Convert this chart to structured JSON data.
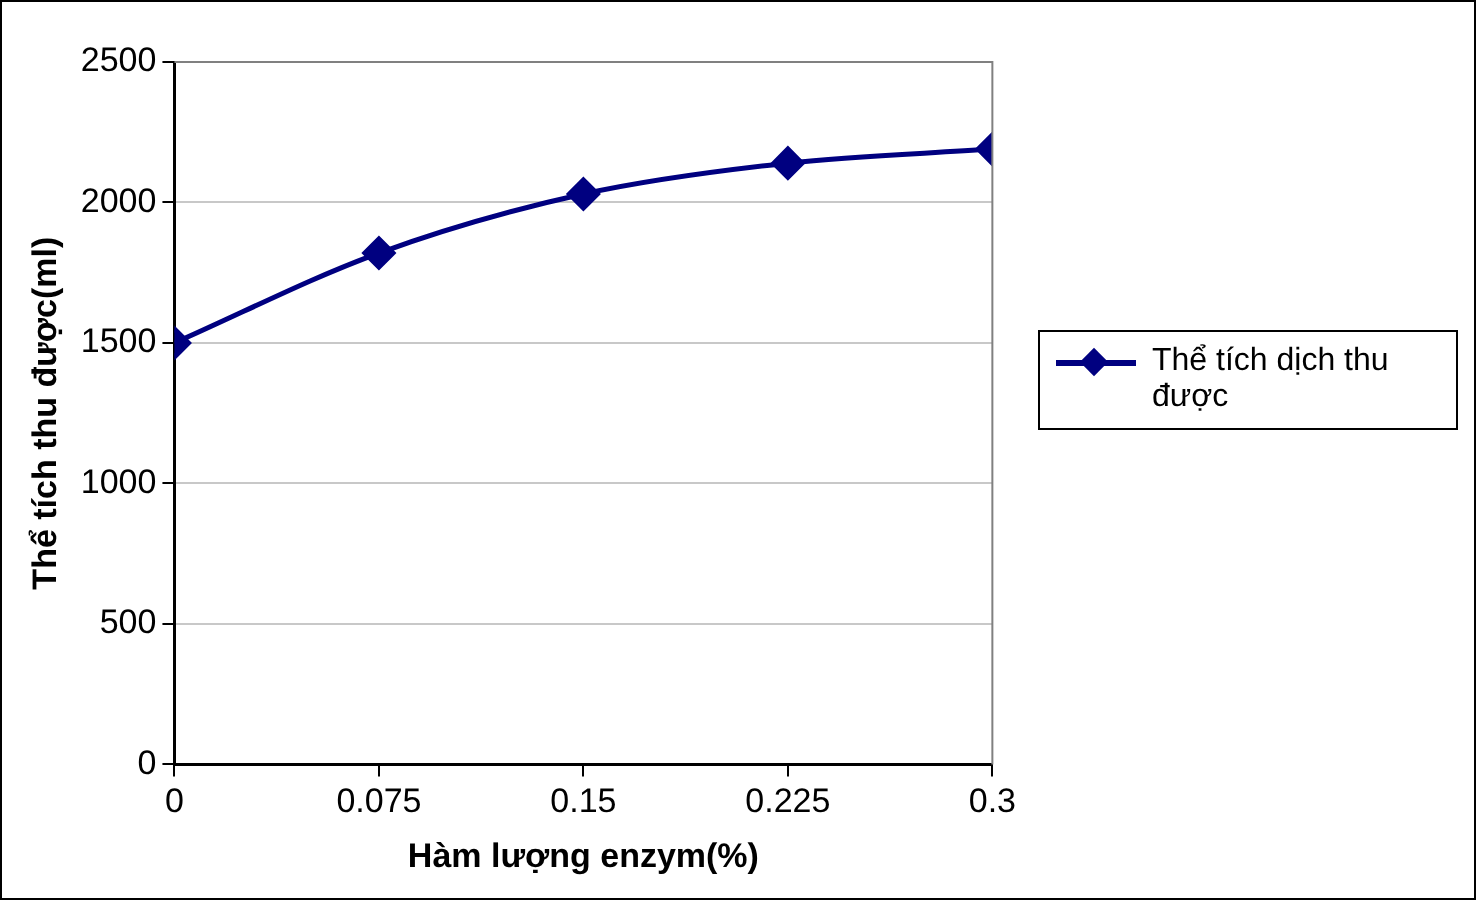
{
  "chart_data": {
    "type": "line",
    "xlabel": "Hàm lượng enzym(%)",
    "ylabel": "Thể tích thu được(ml)",
    "x": [
      0,
      0.075,
      0.15,
      0.225,
      0.3
    ],
    "series": [
      {
        "name": "Thể tích dịch thu được",
        "color": "#000080",
        "values": [
          1500,
          1820,
          2030,
          2140,
          2190
        ]
      }
    ],
    "xlim": [
      0,
      0.3
    ],
    "xticks": [
      0,
      0.075,
      0.15,
      0.225,
      0.3
    ],
    "ylim": [
      0,
      2500
    ],
    "yticks": [
      0,
      500,
      1000,
      1500,
      2000,
      2500
    ],
    "grid": "y",
    "legend": "right",
    "marker": "diamond",
    "line_style": "solid"
  }
}
